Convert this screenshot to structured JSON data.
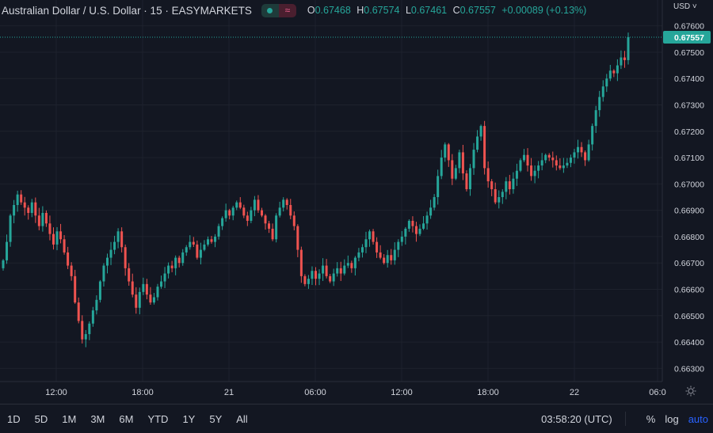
{
  "header": {
    "title": "Australian Dollar / U.S. Dollar · 15 · EASYMARKETS",
    "ohlc": [
      {
        "key": "O",
        "value": "0.67468"
      },
      {
        "key": "H",
        "value": "0.67574"
      },
      {
        "key": "L",
        "value": "0.67461"
      },
      {
        "key": "C",
        "value": "0.67557"
      }
    ],
    "change": "+0.00089 (+0.13%)",
    "currency_label": "USD",
    "wave_icon_glyph": "≈"
  },
  "price_scale": {
    "ticks": [
      "0.67600",
      "0.67500",
      "0.67400",
      "0.67300",
      "0.67200",
      "0.67100",
      "0.67000",
      "0.66900",
      "0.66800",
      "0.66700",
      "0.66600",
      "0.66500",
      "0.66400",
      "0.66300"
    ],
    "last_price_label": "0.67557",
    "last_price": 0.67557
  },
  "time_scale": {
    "labels": [
      "12:00",
      "18:00",
      "21",
      "06:00",
      "12:00",
      "18:00",
      "22",
      "06:0"
    ]
  },
  "bottom_bar": {
    "timeframes": [
      "1D",
      "5D",
      "1M",
      "3M",
      "6M",
      "YTD",
      "1Y",
      "5Y",
      "All"
    ],
    "clock": "03:58:20 (UTC)",
    "percent_label": "%",
    "log_label": "log",
    "auto_label": "auto"
  },
  "colors": {
    "background": "#131722",
    "up": "#26a69a",
    "down": "#ef5350",
    "grid": "#1e222d",
    "text": "#d1d4dc",
    "accent": "#2962ff"
  },
  "chart_data": {
    "type": "candlestick",
    "title": "Australian Dollar / U.S. Dollar · 15 · EASYMARKETS",
    "ylim": [
      0.6625,
      0.6762
    ],
    "y_ticks": [
      0.676,
      0.675,
      0.674,
      0.673,
      0.672,
      0.671,
      0.67,
      0.669,
      0.668,
      0.667,
      0.666,
      0.665,
      0.664,
      0.663
    ],
    "x_tick_labels": [
      "12:00",
      "18:00",
      "21",
      "06:00",
      "12:00",
      "18:00",
      "22",
      "06:0"
    ],
    "last_price": 0.67557,
    "closes": [
      0.6671,
      0.6678,
      0.6688,
      0.6692,
      0.6696,
      0.6693,
      0.6691,
      0.6689,
      0.6693,
      0.6688,
      0.6684,
      0.6689,
      0.6685,
      0.6681,
      0.6677,
      0.6682,
      0.6679,
      0.6674,
      0.6669,
      0.6665,
      0.6655,
      0.6648,
      0.6641,
      0.6643,
      0.6647,
      0.6652,
      0.6656,
      0.6663,
      0.6669,
      0.6672,
      0.6675,
      0.6678,
      0.6682,
      0.6676,
      0.6668,
      0.6663,
      0.6658,
      0.6653,
      0.6659,
      0.6662,
      0.6658,
      0.6655,
      0.6657,
      0.6661,
      0.6663,
      0.6666,
      0.6669,
      0.6668,
      0.6672,
      0.667,
      0.6674,
      0.6676,
      0.6678,
      0.6677,
      0.6672,
      0.6675,
      0.6677,
      0.6679,
      0.6678,
      0.668,
      0.6684,
      0.6687,
      0.669,
      0.6688,
      0.6691,
      0.6693,
      0.6691,
      0.6688,
      0.6686,
      0.669,
      0.6694,
      0.669,
      0.6688,
      0.6685,
      0.6683,
      0.6679,
      0.6688,
      0.6691,
      0.6694,
      0.6692,
      0.6688,
      0.6684,
      0.6675,
      0.6665,
      0.6662,
      0.6664,
      0.6667,
      0.6664,
      0.6666,
      0.6669,
      0.6665,
      0.6663,
      0.6666,
      0.6668,
      0.6666,
      0.6669,
      0.667,
      0.6668,
      0.6672,
      0.6674,
      0.6676,
      0.6679,
      0.6682,
      0.6678,
      0.6674,
      0.6672,
      0.667,
      0.6673,
      0.6671,
      0.6675,
      0.6678,
      0.668,
      0.6683,
      0.6686,
      0.6684,
      0.6681,
      0.6683,
      0.6685,
      0.6688,
      0.6691,
      0.6695,
      0.6703,
      0.671,
      0.6715,
      0.6709,
      0.6702,
      0.6706,
      0.6712,
      0.6704,
      0.6698,
      0.6706,
      0.6713,
      0.6718,
      0.6722,
      0.6706,
      0.6701,
      0.6698,
      0.6693,
      0.6695,
      0.6697,
      0.6701,
      0.6698,
      0.6702,
      0.6705,
      0.6709,
      0.6711,
      0.6707,
      0.6703,
      0.6705,
      0.6707,
      0.6709,
      0.6711,
      0.671,
      0.6709,
      0.6707,
      0.6706,
      0.6707,
      0.6708,
      0.671,
      0.6712,
      0.6714,
      0.6712,
      0.6709,
      0.6715,
      0.6722,
      0.6728,
      0.6733,
      0.6737,
      0.674,
      0.6743,
      0.6742,
      0.6745,
      0.6748,
      0.6747,
      0.67557
    ]
  }
}
